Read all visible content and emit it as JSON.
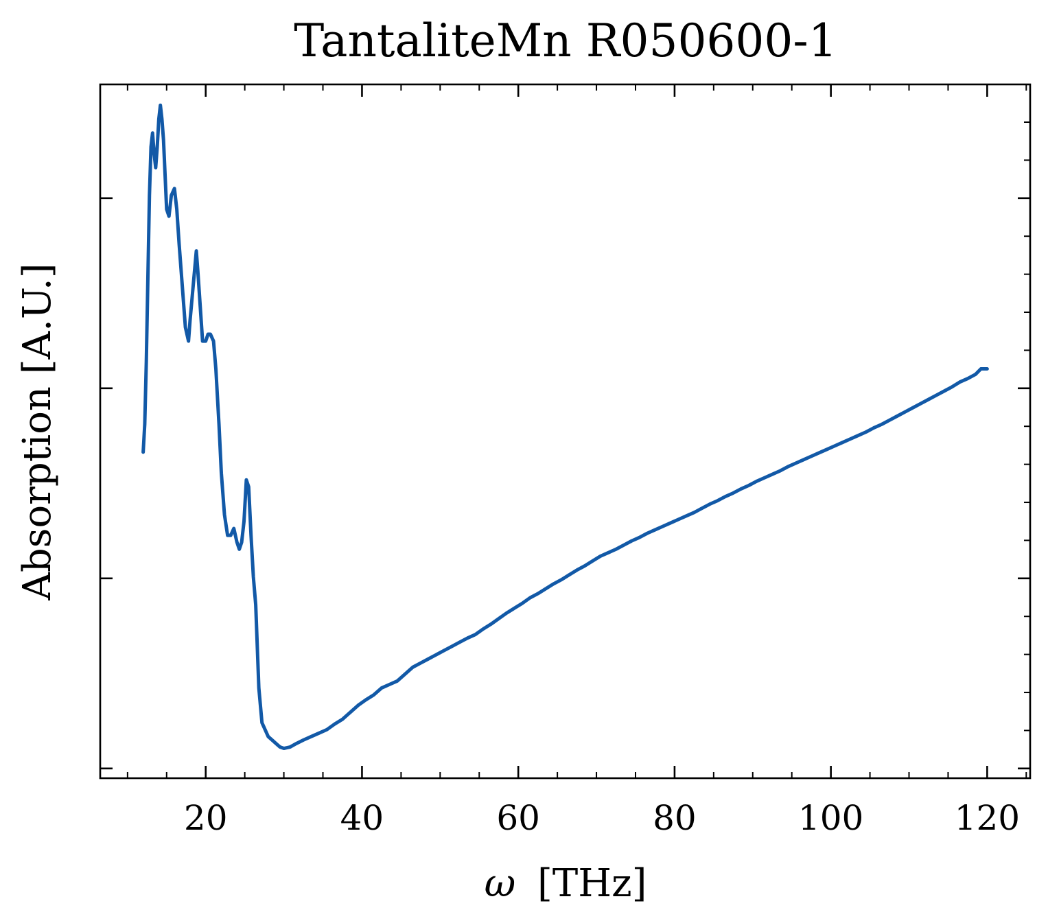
{
  "chart_data": {
    "type": "line",
    "title": "TantaliteMn R050600-1",
    "xlabel_symbol": "ω",
    "xlabel_unit": "[THz]",
    "ylabel": "Absorption [A.U.]",
    "xlim": [
      6.5,
      125.5
    ],
    "ylim": [
      0.0,
      1.0
    ],
    "x_ticks": [
      20,
      40,
      60,
      80,
      100,
      120
    ],
    "y_tick_labels_shown": false,
    "grid": false,
    "legend": "none",
    "color": "#1259a7",
    "series": [
      {
        "x": [
          12.0,
          12.2,
          12.4,
          12.6,
          12.8,
          13.0,
          13.2,
          13.4,
          13.6,
          13.8,
          14.0,
          14.2,
          14.4,
          14.6,
          14.8,
          15.0,
          15.3,
          15.6,
          16.0,
          16.3,
          16.6,
          17.0,
          17.4,
          17.8,
          18.0,
          18.4,
          18.8,
          19.0,
          19.3,
          19.6,
          20.0,
          20.3,
          20.6,
          21.0,
          21.3,
          21.7,
          22.0,
          22.4,
          22.8,
          23.2,
          23.6,
          24.0,
          24.3,
          24.6,
          24.9,
          25.2,
          25.5,
          25.8,
          26.1,
          26.4,
          26.8,
          27.2,
          27.6,
          28.0,
          28.5,
          29.0,
          29.5,
          30.0,
          30.8,
          31.6,
          32.5,
          33.5,
          34.5,
          35.5,
          36.5,
          37.5,
          38.5,
          39.5,
          40.5,
          41.5,
          42.5,
          43.5,
          44.5,
          45.5,
          46.5,
          47.5,
          48.5,
          49.5,
          50.5,
          51.5,
          52.5,
          53.5,
          54.5,
          55.5,
          56.5,
          57.5,
          58.5,
          59.5,
          60.5,
          61.5,
          62.5,
          63.5,
          64.5,
          65.5,
          66.5,
          67.5,
          68.5,
          69.5,
          70.5,
          71.5,
          72.5,
          73.5,
          74.5,
          75.5,
          76.5,
          77.5,
          78.5,
          79.5,
          80.5,
          81.5,
          82.5,
          83.5,
          84.5,
          85.5,
          86.5,
          87.5,
          88.5,
          89.5,
          90.5,
          91.5,
          92.5,
          93.5,
          94.5,
          95.5,
          96.5,
          97.5,
          98.5,
          99.5,
          100.5,
          101.5,
          102.5,
          103.5,
          104.5,
          105.5,
          106.5,
          107.5,
          108.5,
          109.5,
          110.5,
          111.5,
          112.5,
          113.5,
          114.5,
          115.5,
          116.5,
          117.5,
          118.5,
          119.2,
          120.0
        ],
        "y": [
          0.47,
          0.51,
          0.6,
          0.72,
          0.84,
          0.91,
          0.93,
          0.9,
          0.88,
          0.91,
          0.95,
          0.97,
          0.95,
          0.92,
          0.87,
          0.82,
          0.81,
          0.84,
          0.85,
          0.82,
          0.77,
          0.71,
          0.65,
          0.63,
          0.66,
          0.71,
          0.76,
          0.73,
          0.68,
          0.63,
          0.63,
          0.64,
          0.64,
          0.63,
          0.59,
          0.51,
          0.44,
          0.38,
          0.35,
          0.35,
          0.36,
          0.34,
          0.33,
          0.34,
          0.37,
          0.43,
          0.42,
          0.35,
          0.29,
          0.25,
          0.13,
          0.08,
          0.07,
          0.06,
          0.055,
          0.05,
          0.045,
          0.043,
          0.045,
          0.05,
          0.055,
          0.06,
          0.065,
          0.07,
          0.078,
          0.085,
          0.095,
          0.105,
          0.113,
          0.12,
          0.13,
          0.135,
          0.14,
          0.15,
          0.16,
          0.166,
          0.172,
          0.178,
          0.184,
          0.19,
          0.196,
          0.202,
          0.207,
          0.215,
          0.222,
          0.23,
          0.238,
          0.245,
          0.252,
          0.26,
          0.266,
          0.273,
          0.28,
          0.286,
          0.293,
          0.3,
          0.306,
          0.313,
          0.32,
          0.325,
          0.33,
          0.336,
          0.342,
          0.347,
          0.353,
          0.358,
          0.363,
          0.368,
          0.373,
          0.378,
          0.383,
          0.389,
          0.395,
          0.4,
          0.406,
          0.411,
          0.417,
          0.422,
          0.428,
          0.433,
          0.438,
          0.443,
          0.449,
          0.454,
          0.459,
          0.464,
          0.469,
          0.474,
          0.479,
          0.484,
          0.489,
          0.494,
          0.499,
          0.505,
          0.51,
          0.516,
          0.522,
          0.528,
          0.534,
          0.54,
          0.546,
          0.552,
          0.558,
          0.564,
          0.571,
          0.576,
          0.582,
          0.59,
          0.59
        ]
      }
    ]
  }
}
